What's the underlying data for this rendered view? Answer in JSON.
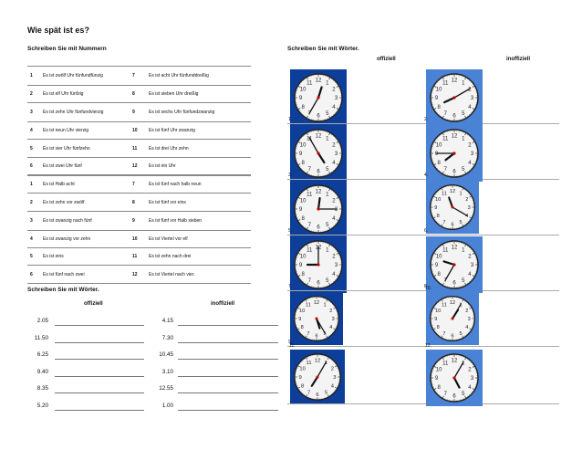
{
  "title": "Wie spät ist es?",
  "left_section_heading": "Schreiben Sie mit Nummern",
  "right_section_heading": "Schreiben Sie mit Wörter.",
  "table1": [
    {
      "n1": "1",
      "t1": "Es ist zwölf Uhr fünfundfünzig",
      "n2": "7",
      "t2": "Es ist acht Uhr fünfunddreißig"
    },
    {
      "n1": "2",
      "t1": "Es ist elf Uhr fünfzig",
      "n2": "8",
      "t2": "Es ist sieben Uhr dreißig"
    },
    {
      "n1": "3",
      "t1": "Es ist zehn Uhr fünfundvierzig",
      "n2": "9",
      "t2": "Es ist sechs Uhr fünfundzwanzig"
    },
    {
      "n1": "4",
      "t1": "Es ist neun Uhr vierzig",
      "n2": "10",
      "t2": "Es ist fünf Uhr zwanzig"
    },
    {
      "n1": "5",
      "t1": "Es ist vier Uhr fünfzehn",
      "n2": "11",
      "t2": "Es ist drei Uhr zehn"
    },
    {
      "n1": "6",
      "t1": "Es ist zwei Uhr fünf",
      "n2": "12",
      "t2": "Es ist ein Uhr"
    }
  ],
  "table2": [
    {
      "n1": "1",
      "t1": "Es ist Halb acht",
      "n2": "7",
      "t2": "Es ist fünf nach halb neun"
    },
    {
      "n1": "2",
      "t1": "Es ist zehn vor zwölf",
      "n2": "8",
      "t2": "Es ist fünf vor eins"
    },
    {
      "n1": "3",
      "t1": "Es ist zwanzig nach fünf",
      "n2": "9",
      "t2": "Es ist fünf vor Halb sieben"
    },
    {
      "n1": "4",
      "t1": "Es ist zwanzig vor zehn",
      "n2": "10",
      "t2": "Es ist Viertel vor elf"
    },
    {
      "n1": "5",
      "t1": "Es ist eins",
      "n2": "11",
      "t2": "Es ist zehn nach drei"
    },
    {
      "n1": "6",
      "t1": "Es ist fünf nach zwei",
      "n2": "12",
      "t2": "Es ist Viertel nach vier."
    }
  ],
  "lower_left_heading": "Schreiben Sie mit Wörter.",
  "col_official": "offiziell",
  "col_unofficial": "inoffiziell",
  "times_left": [
    "2.05",
    "11.50",
    "6.25",
    "9.40",
    "8.35",
    "5.20"
  ],
  "times_right": [
    "4.15",
    "7.30",
    "10.45",
    "3.10",
    "12.55",
    "1.00"
  ],
  "clocks": [
    {
      "label": "1.",
      "h": 12,
      "m": 35
    },
    {
      "label": "2.",
      "h": 8,
      "m": 10
    },
    {
      "label": "3.",
      "h": 4,
      "m": 55
    },
    {
      "label": "4.",
      "h": 7,
      "m": 45
    },
    {
      "label": "5.",
      "h": 12,
      "m": 15
    },
    {
      "label": "6.",
      "h": 11,
      "m": 20
    },
    {
      "label": "7.",
      "h": 9,
      "m": 0
    },
    {
      "label": "8.",
      "h": 9,
      "m": 35
    },
    {
      "label": "9.",
      "h": 5,
      "m": 25
    },
    {
      "label": "10.",
      "h": 1,
      "m": 5
    },
    {
      "label": "11.",
      "h": 7,
      "m": 5
    },
    {
      "label": "12.",
      "h": 5,
      "m": 5
    }
  ],
  "clock_colors": {
    "frame": "#0d3f9a",
    "frame_light": "#4a82d6",
    "face": "#f4f4f4"
  }
}
